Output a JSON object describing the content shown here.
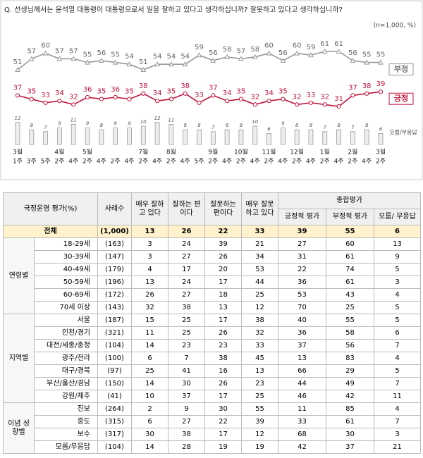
{
  "chart_data": {
    "type": "line",
    "title": "Q. 선생님께서는 윤석열 대통령이 대통령으로서 일을 잘하고 있다고 생각하십니까? 잘못하고 있다고 생각하십니까?",
    "note": "(n=1,000, %)",
    "categories": [
      "1주",
      "3주",
      "5주",
      "2주",
      "4주",
      "2주",
      "4주",
      "2주",
      "4주",
      "2주",
      "4주",
      "2주",
      "4주",
      "5주",
      "2주",
      "4주",
      "2주",
      "4주",
      "2주",
      "4주",
      "2주",
      "4주",
      "2주",
      "4주",
      "2주",
      "4주",
      "2주"
    ],
    "month_labels": [
      "3월",
      null,
      null,
      "4월",
      null,
      "5월",
      null,
      null,
      null,
      "7월",
      null,
      "8월",
      null,
      null,
      "9월",
      null,
      "10월",
      null,
      "11월",
      null,
      "12월",
      null,
      "1월",
      null,
      "2월",
      null,
      "3월"
    ],
    "series": [
      {
        "name": "부정",
        "color": "#999999",
        "values": [
          51,
          57,
          60,
          57,
          57,
          55,
          56,
          55,
          54,
          51,
          54,
          54,
          54,
          59,
          56,
          58,
          57,
          58,
          60,
          56,
          60,
          59,
          61,
          61,
          56,
          55,
          55
        ]
      },
      {
        "name": "긍정",
        "color": "#c0143c",
        "values": [
          37,
          35,
          33,
          34,
          32,
          36,
          35,
          36,
          35,
          38,
          34,
          35,
          38,
          33,
          37,
          34,
          35,
          32,
          34,
          35,
          32,
          33,
          32,
          31,
          37,
          38,
          39
        ]
      },
      {
        "name": "모름/무응답",
        "type": "bar",
        "color": "#eeeeee",
        "values": [
          12,
          8,
          7,
          9,
          11,
          9,
          8,
          9,
          9,
          10,
          12,
          11,
          8,
          8,
          7,
          8,
          8,
          10,
          6,
          9,
          8,
          8,
          7,
          8,
          7,
          8,
          6
        ]
      }
    ]
  },
  "table": {
    "corner": "국정운영 평가(%)",
    "columns": [
      "사례수",
      "매우 잘하고 있다",
      "잘하는 편이다",
      "잘못하는 편이다",
      "매우 잘못하고 있다"
    ],
    "summary": "종합평가",
    "summary_columns": [
      "긍정적 평가",
      "부정적 평가",
      "모름/ 무응답"
    ],
    "total": [
      "전체",
      "(1,000)",
      13,
      26,
      22,
      33,
      39,
      55,
      6
    ],
    "groups": [
      {
        "name": "연령별",
        "rows": [
          [
            "18-29세",
            "(163)",
            3,
            24,
            39,
            21,
            27,
            60,
            13
          ],
          [
            "30-39세",
            "(147)",
            3,
            27,
            26,
            34,
            31,
            61,
            9
          ],
          [
            "40-49세",
            "(179)",
            4,
            17,
            20,
            53,
            22,
            74,
            5
          ],
          [
            "50-59세",
            "(196)",
            13,
            24,
            17,
            44,
            36,
            61,
            3
          ],
          [
            "60-69세",
            "(172)",
            26,
            27,
            18,
            25,
            53,
            43,
            4
          ],
          [
            "70세 이상",
            "(143)",
            32,
            38,
            13,
            12,
            70,
            25,
            5
          ]
        ]
      },
      {
        "name": "지역별",
        "rows": [
          [
            "서울",
            "(187)",
            15,
            25,
            17,
            38,
            40,
            55,
            5
          ],
          [
            "인천/경기",
            "(321)",
            11,
            25,
            26,
            32,
            36,
            58,
            6
          ],
          [
            "대전/세종/충청",
            "(104)",
            14,
            23,
            23,
            33,
            37,
            56,
            7
          ],
          [
            "광주/전라",
            "(100)",
            6,
            7,
            38,
            45,
            13,
            83,
            4
          ],
          [
            "대구/경북",
            "(97)",
            25,
            41,
            16,
            13,
            66,
            29,
            5
          ],
          [
            "부산/울산/경남",
            "(150)",
            14,
            30,
            26,
            23,
            44,
            49,
            7
          ],
          [
            "강원/제주",
            "(41)",
            10,
            37,
            17,
            25,
            46,
            42,
            11
          ]
        ]
      },
      {
        "name": "이념 성향별",
        "rows": [
          [
            "진보",
            "(264)",
            2,
            9,
            30,
            55,
            11,
            85,
            4
          ],
          [
            "중도",
            "(315)",
            6,
            27,
            22,
            39,
            33,
            61,
            7
          ],
          [
            "보수",
            "(317)",
            30,
            38,
            17,
            12,
            68,
            30,
            3
          ],
          [
            "모름/무응답",
            "(104)",
            14,
            28,
            19,
            19,
            42,
            37,
            21
          ]
        ]
      }
    ]
  }
}
